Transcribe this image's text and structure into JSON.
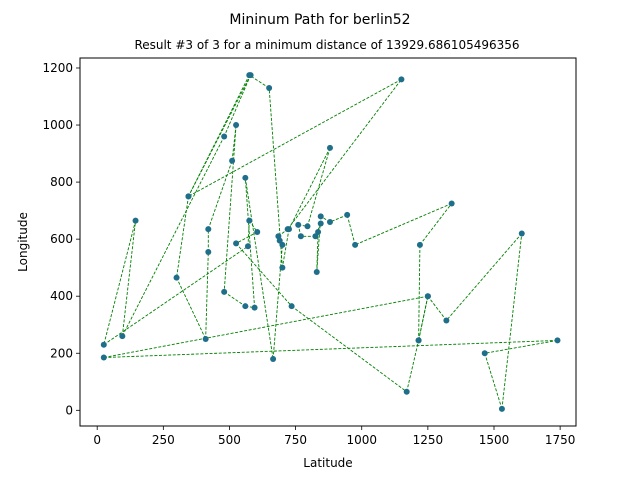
{
  "chart_data": {
    "type": "scatter",
    "title": "Mininum Path for berlin52",
    "subtitle": "Result #3 of 3 for a minimum distance of 13929.686105496356",
    "xlabel": "Latitude",
    "ylabel": "Longitude",
    "xlim": [
      -65,
      1810
    ],
    "ylim": [
      -55,
      1235
    ],
    "x_ticks": [
      0,
      250,
      500,
      750,
      1000,
      1250,
      1500,
      1750
    ],
    "y_ticks": [
      0,
      200,
      400,
      600,
      800,
      1000,
      1200
    ],
    "grid": false,
    "point_color": "#1f6f8b",
    "line_color": "#008000",
    "line_style": "dashed",
    "points": [
      [
        25,
        185
      ],
      [
        1740,
        245
      ],
      [
        1465,
        200
      ],
      [
        1530,
        5
      ],
      [
        1605,
        620
      ],
      [
        1320,
        315
      ],
      [
        1250,
        400
      ],
      [
        1215,
        245
      ],
      [
        1220,
        580
      ],
      [
        1340,
        725
      ],
      [
        975,
        580
      ],
      [
        945,
        685
      ],
      [
        880,
        660
      ],
      [
        845,
        680
      ],
      [
        830,
        485
      ],
      [
        835,
        625
      ],
      [
        845,
        655
      ],
      [
        825,
        610
      ],
      [
        770,
        610
      ],
      [
        760,
        650
      ],
      [
        795,
        645
      ],
      [
        880,
        920
      ],
      [
        725,
        635
      ],
      [
        700,
        500
      ],
      [
        650,
        1130
      ],
      [
        575,
        1175
      ],
      [
        345,
        750
      ],
      [
        300,
        465
      ],
      [
        410,
        250
      ],
      [
        420,
        555
      ],
      [
        420,
        635
      ],
      [
        510,
        875
      ],
      [
        525,
        1000
      ],
      [
        480,
        415
      ],
      [
        560,
        365
      ],
      [
        595,
        360
      ],
      [
        560,
        815
      ],
      [
        665,
        180
      ],
      [
        700,
        580
      ],
      [
        690,
        595
      ],
      [
        685,
        610
      ],
      [
        720,
        635
      ],
      [
        1150,
        1160
      ],
      [
        345,
        750
      ],
      [
        580,
        1175
      ],
      [
        480,
        960
      ],
      [
        95,
        260
      ],
      [
        145,
        665
      ],
      [
        25,
        230
      ],
      [
        570,
        575
      ],
      [
        575,
        665
      ],
      [
        605,
        625
      ],
      [
        525,
        585
      ],
      [
        735,
        365
      ],
      [
        1170,
        65
      ],
      [
        1215,
        245
      ],
      [
        1250,
        400
      ]
    ]
  }
}
